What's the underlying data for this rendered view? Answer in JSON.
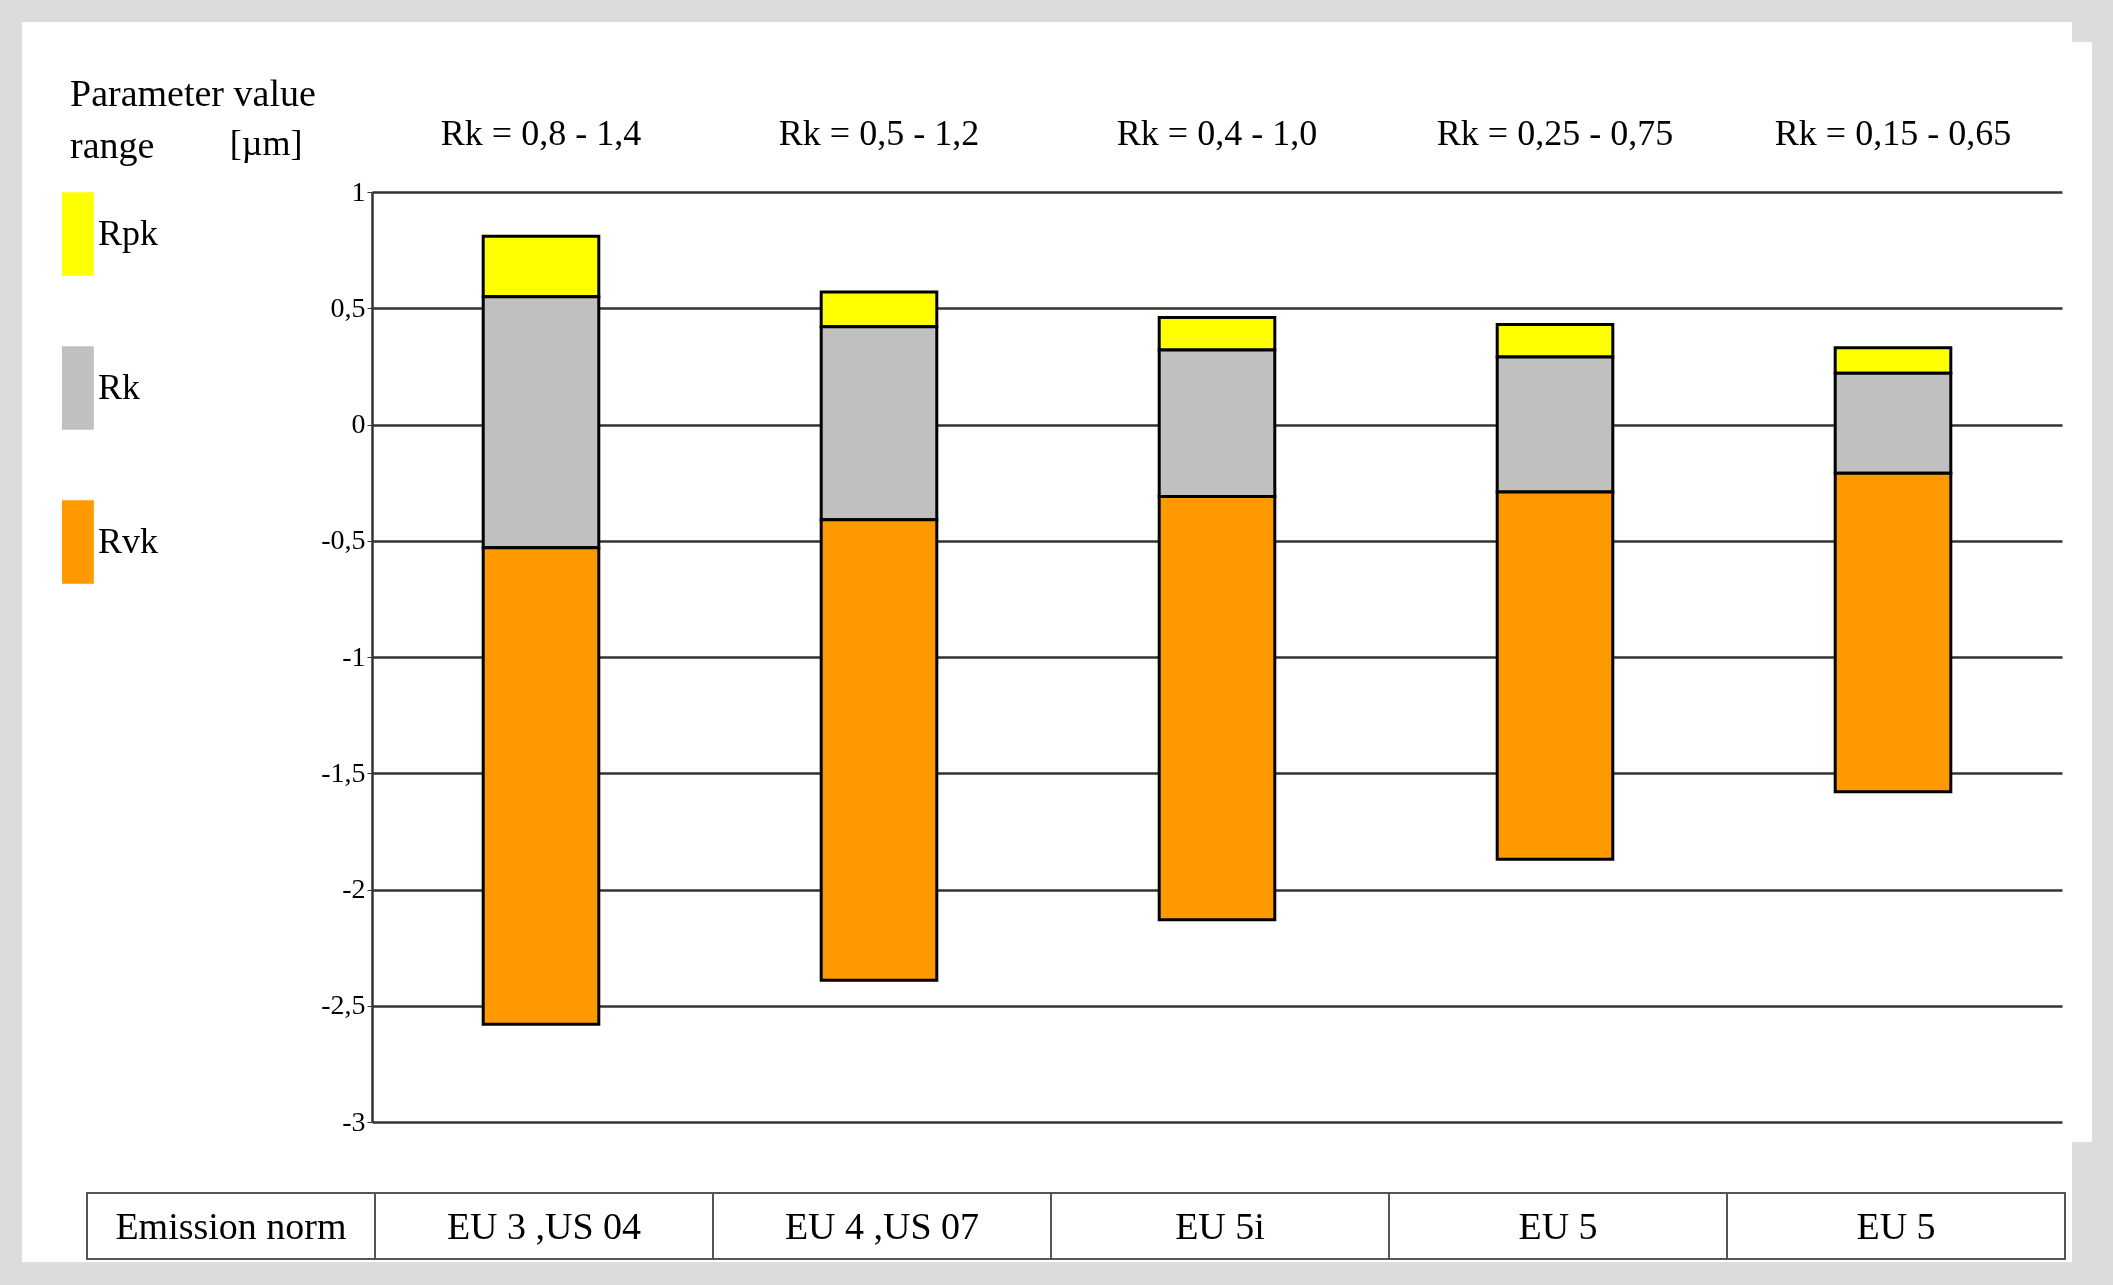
{
  "chart_data": {
    "type": "bar",
    "xlabel": "Parameter value range",
    "ylabel": "[µm]",
    "categories": [
      "Rk = 0,8 - 1,4",
      "Rk = 0,5 - 1,2",
      "Rk = 0,4 - 1,0",
      "Rk = 0,25 - 0,75",
      "Rk =  0,15 - 0,65"
    ],
    "series": [
      {
        "name": "Rpk",
        "color": "#ffff00",
        "base": [
          0.55,
          0.42,
          0.32,
          0.29,
          0.22
        ],
        "values": [
          0.26,
          0.15,
          0.14,
          0.14,
          0.11
        ]
      },
      {
        "name": "Rk",
        "color": "#c0c0c0",
        "base": [
          -0.53,
          -0.41,
          -0.31,
          -0.29,
          -0.21
        ],
        "values": [
          1.08,
          0.83,
          0.63,
          0.58,
          0.43
        ]
      },
      {
        "name": "Rvk",
        "color": "#ff9900",
        "base": [
          -2.58,
          -2.39,
          -2.13,
          -1.87,
          -1.58
        ],
        "values": [
          2.05,
          1.98,
          1.82,
          1.58,
          1.37
        ]
      }
    ],
    "ylim": [
      -3,
      1
    ],
    "yticks": [
      {
        "value": -3,
        "label": "-3"
      },
      {
        "value": -2.5,
        "label": "-2,5"
      },
      {
        "value": -2,
        "label": "-2"
      },
      {
        "value": -1.5,
        "label": "-1,5"
      },
      {
        "value": -1,
        "label": "-1"
      },
      {
        "value": -0.5,
        "label": "-0,5"
      },
      {
        "value": 0,
        "label": "0"
      },
      {
        "value": 0.5,
        "label": "0,5"
      },
      {
        "value": 1,
        "label": "1"
      }
    ],
    "grid": "y",
    "legend": "left",
    "annotations": [
      "Emission norm",
      "EU 3 ,US 04",
      "EU 4 ,US 07",
      "EU 5i",
      "EU 5",
      "EU 5"
    ]
  }
}
